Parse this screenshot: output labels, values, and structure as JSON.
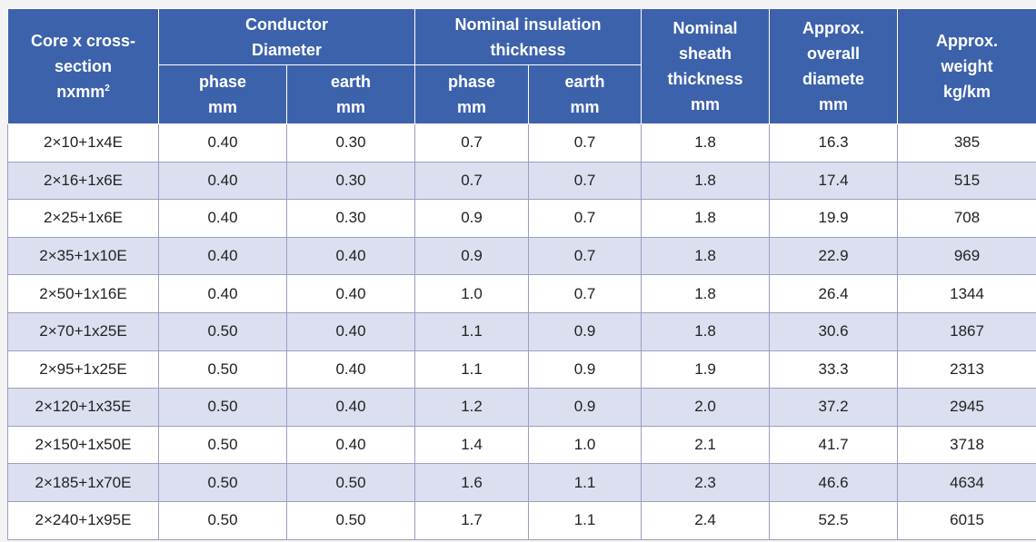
{
  "header": {
    "core_line1": "Core x cross-",
    "core_line2": "section",
    "core_line3": "nxmm",
    "core_sup": "2",
    "conductor_line1": "Conductor",
    "conductor_line2": "Diameter",
    "insulation_line1": "Nominal insulation",
    "insulation_line2": "thickness",
    "sheath_line1": "Nominal",
    "sheath_line2": "sheath",
    "sheath_line3": "thickness",
    "sheath_line4": "mm",
    "diameter_line1": "Approx.",
    "diameter_line2": "overall",
    "diameter_line3": "diamete",
    "diameter_line4": "mm",
    "weight_line1": "Approx.",
    "weight_line2": "weight",
    "weight_line3": "kg/km",
    "sub_phase": "phase",
    "sub_earth": "earth",
    "sub_unit": "mm"
  },
  "rows": [
    [
      "2×10+1x4E",
      "0.40",
      "0.30",
      "0.7",
      "0.7",
      "1.8",
      "16.3",
      "385"
    ],
    [
      "2×16+1x6E",
      "0.40",
      "0.30",
      "0.7",
      "0.7",
      "1.8",
      "17.4",
      "515"
    ],
    [
      "2×25+1x6E",
      "0.40",
      "0.30",
      "0.9",
      "0.7",
      "1.8",
      "19.9",
      "708"
    ],
    [
      "2×35+1x10E",
      "0.40",
      "0.40",
      "0.9",
      "0.7",
      "1.8",
      "22.9",
      "969"
    ],
    [
      "2×50+1x16E",
      "0.40",
      "0.40",
      "1.0",
      "0.7",
      "1.8",
      "26.4",
      "1344"
    ],
    [
      "2×70+1x25E",
      "0.50",
      "0.40",
      "1.1",
      "0.9",
      "1.8",
      "30.6",
      "1867"
    ],
    [
      "2×95+1x25E",
      "0.50",
      "0.40",
      "1.1",
      "0.9",
      "1.9",
      "33.3",
      "2313"
    ],
    [
      "2×120+1x35E",
      "0.50",
      "0.40",
      "1.2",
      "0.9",
      "2.0",
      "37.2",
      "2945"
    ],
    [
      "2×150+1x50E",
      "0.50",
      "0.40",
      "1.4",
      "1.0",
      "2.1",
      "41.7",
      "3718"
    ],
    [
      "2×185+1x70E",
      "0.50",
      "0.50",
      "1.6",
      "1.1",
      "2.3",
      "46.6",
      "4634"
    ],
    [
      "2×240+1x95E",
      "0.50",
      "0.50",
      "1.7",
      "1.1",
      "2.4",
      "52.5",
      "6015"
    ]
  ],
  "colors": {
    "header_bg": "#3d62ac",
    "header_text": "#ffffff",
    "row_odd": "#ffffff",
    "row_even": "#dcdff0"
  }
}
